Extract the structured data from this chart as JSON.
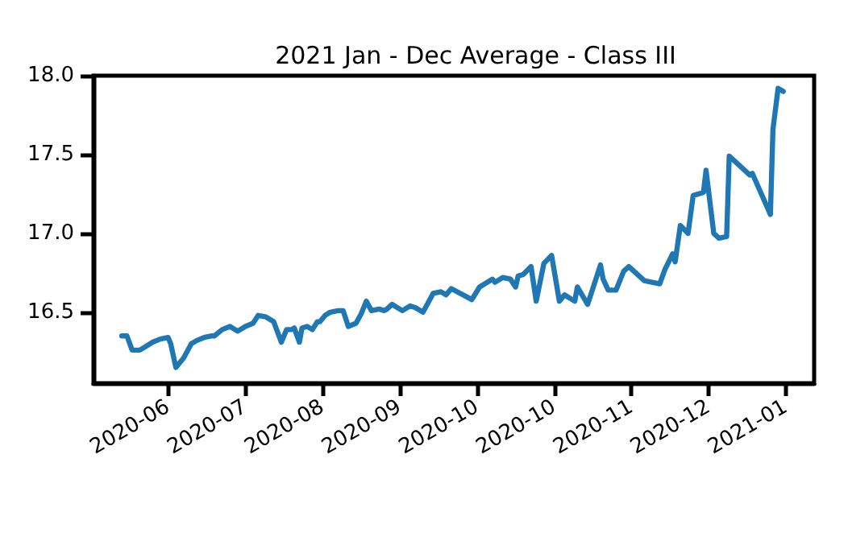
{
  "chart_data": {
    "type": "line",
    "title": "2021 Jan - Dec Average - Class III",
    "x": [
      "2020-05-16",
      "2020-05-18",
      "2020-05-20",
      "2020-05-23",
      "2020-05-26",
      "2020-05-28",
      "2020-05-31",
      "2020-06-03",
      "2020-06-04",
      "2020-06-06",
      "2020-06-09",
      "2020-06-12",
      "2020-06-14",
      "2020-06-17",
      "2020-06-20",
      "2020-06-21",
      "2020-06-24",
      "2020-06-27",
      "2020-06-30",
      "2020-07-03",
      "2020-07-06",
      "2020-07-08",
      "2020-07-11",
      "2020-07-14",
      "2020-07-17",
      "2020-07-19",
      "2020-07-21",
      "2020-07-22",
      "2020-07-24",
      "2020-07-25",
      "2020-07-27",
      "2020-07-29",
      "2020-07-31",
      "2020-08-01",
      "2020-08-03",
      "2020-08-05",
      "2020-08-08",
      "2020-08-10",
      "2020-08-12",
      "2020-08-15",
      "2020-08-17",
      "2020-08-19",
      "2020-08-21",
      "2020-08-24",
      "2020-08-26",
      "2020-08-27",
      "2020-08-29",
      "2020-08-31",
      "2020-09-02",
      "2020-09-05",
      "2020-09-07",
      "2020-09-10",
      "2020-09-11",
      "2020-09-14",
      "2020-09-17",
      "2020-09-19",
      "2020-09-21",
      "2020-09-29",
      "2020-10-02",
      "2020-10-07",
      "2020-10-08",
      "2020-10-11",
      "2020-10-14",
      "2020-10-16",
      "2020-10-17",
      "2020-10-19",
      "2020-10-22",
      "2020-10-24",
      "2020-10-27",
      "2020-10-30",
      "2020-11-02",
      "2020-11-04",
      "2020-11-08",
      "2020-11-09",
      "2020-11-13",
      "2020-11-18",
      "2020-11-19",
      "2020-11-21",
      "2020-11-24",
      "2020-11-27",
      "2020-11-29",
      "2020-12-05",
      "2020-12-11",
      "2020-12-13",
      "2020-12-16",
      "2020-12-17",
      "2020-12-19",
      "2020-12-22",
      "2020-12-24",
      "2020-12-28",
      "2020-12-29",
      "2021-01-01",
      "2021-01-03",
      "2021-01-06",
      "2021-01-07",
      "2021-01-15",
      "2021-01-16",
      "2021-01-23",
      "2021-01-24",
      "2021-01-26",
      "2021-01-28"
    ],
    "series": [
      {
        "color": "#1f77b4",
        "values": [
          16.35,
          16.35,
          16.26,
          16.26,
          16.29,
          16.31,
          16.33,
          16.34,
          16.3,
          16.15,
          16.21,
          16.3,
          16.32,
          16.34,
          16.35,
          16.35,
          16.39,
          16.41,
          16.38,
          16.41,
          16.43,
          16.48,
          16.47,
          16.44,
          16.31,
          16.39,
          16.39,
          16.4,
          16.31,
          16.4,
          16.41,
          16.39,
          16.44,
          16.44,
          16.48,
          16.5,
          16.51,
          16.51,
          16.41,
          16.43,
          16.49,
          16.57,
          16.51,
          16.52,
          16.51,
          16.52,
          16.55,
          16.53,
          16.51,
          16.54,
          16.53,
          16.5,
          16.53,
          16.62,
          16.63,
          16.61,
          16.65,
          16.58,
          16.66,
          16.71,
          16.69,
          16.72,
          16.71,
          16.66,
          16.73,
          16.74,
          16.79,
          16.57,
          16.81,
          16.86,
          16.57,
          16.61,
          16.57,
          16.66,
          16.55,
          16.8,
          16.71,
          16.64,
          16.64,
          16.76,
          16.79,
          16.7,
          16.68,
          16.77,
          16.87,
          16.82,
          17.05,
          17.0,
          17.24,
          17.26,
          17.4,
          17.0,
          16.97,
          16.98,
          17.49,
          17.37,
          17.38,
          17.12,
          17.66,
          17.92,
          17.9
        ]
      }
    ],
    "xlim": [
      "2020-05-05",
      "2021-02-09"
    ],
    "xticks": [
      {
        "value": "2020-06-03",
        "label": "2020-06"
      },
      {
        "value": "2020-07-03",
        "label": "2020-07"
      },
      {
        "value": "2020-08-02",
        "label": "2020-08"
      },
      {
        "value": "2020-09-01",
        "label": "2020-09"
      },
      {
        "value": "2020-10-01",
        "label": "2020-10"
      },
      {
        "value": "2020-10-31",
        "label": "2020-10"
      },
      {
        "value": "2020-11-30",
        "label": "2020-11"
      },
      {
        "value": "2020-12-30",
        "label": "2020-12"
      },
      {
        "value": "2021-01-29",
        "label": "2021-01"
      }
    ],
    "ylim": [
      16.05,
      18.0
    ],
    "yticks": [
      {
        "value": 16.5,
        "label": "16.5"
      },
      {
        "value": 17,
        "label": "17.0"
      },
      {
        "value": 17.5,
        "label": "17.5"
      },
      {
        "value": 18,
        "label": "18.0"
      }
    ],
    "grid": false,
    "marker": "none",
    "line_style": "solid"
  }
}
